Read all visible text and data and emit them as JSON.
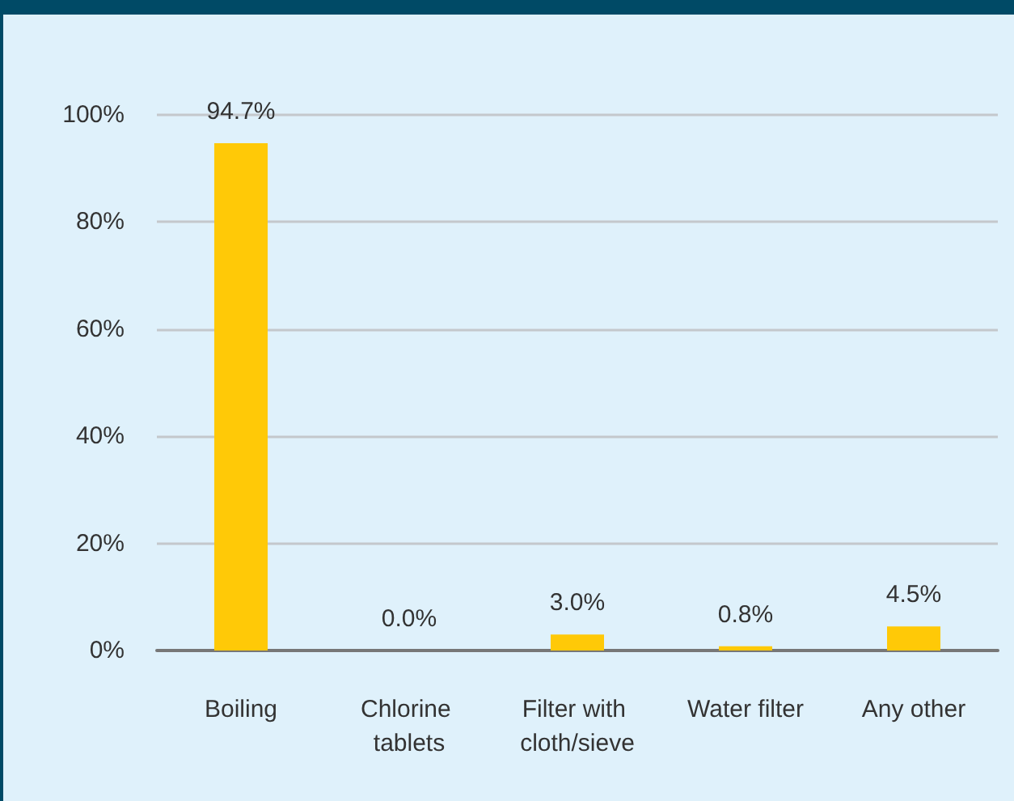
{
  "chart_data": {
    "type": "bar",
    "categories": [
      "Boiling",
      "Chlorine tablets",
      "Filter with cloth/sieve",
      "Water filter",
      "Any other"
    ],
    "values": [
      94.7,
      0.0,
      3.0,
      0.8,
      4.5
    ],
    "value_labels": [
      "94.7%",
      "0.0%",
      "3.0%",
      "0.8%",
      "4.5%"
    ],
    "color": "#ffc907",
    "ylim": [
      0,
      100
    ],
    "yticks": [
      {
        "value": 0,
        "label": "0%"
      },
      {
        "value": 20,
        "label": "20%"
      },
      {
        "value": 40,
        "label": "40%"
      },
      {
        "value": 60,
        "label": "60%"
      },
      {
        "value": 80,
        "label": "80%"
      },
      {
        "value": 100,
        "label": "100%"
      }
    ],
    "grid": "y"
  }
}
